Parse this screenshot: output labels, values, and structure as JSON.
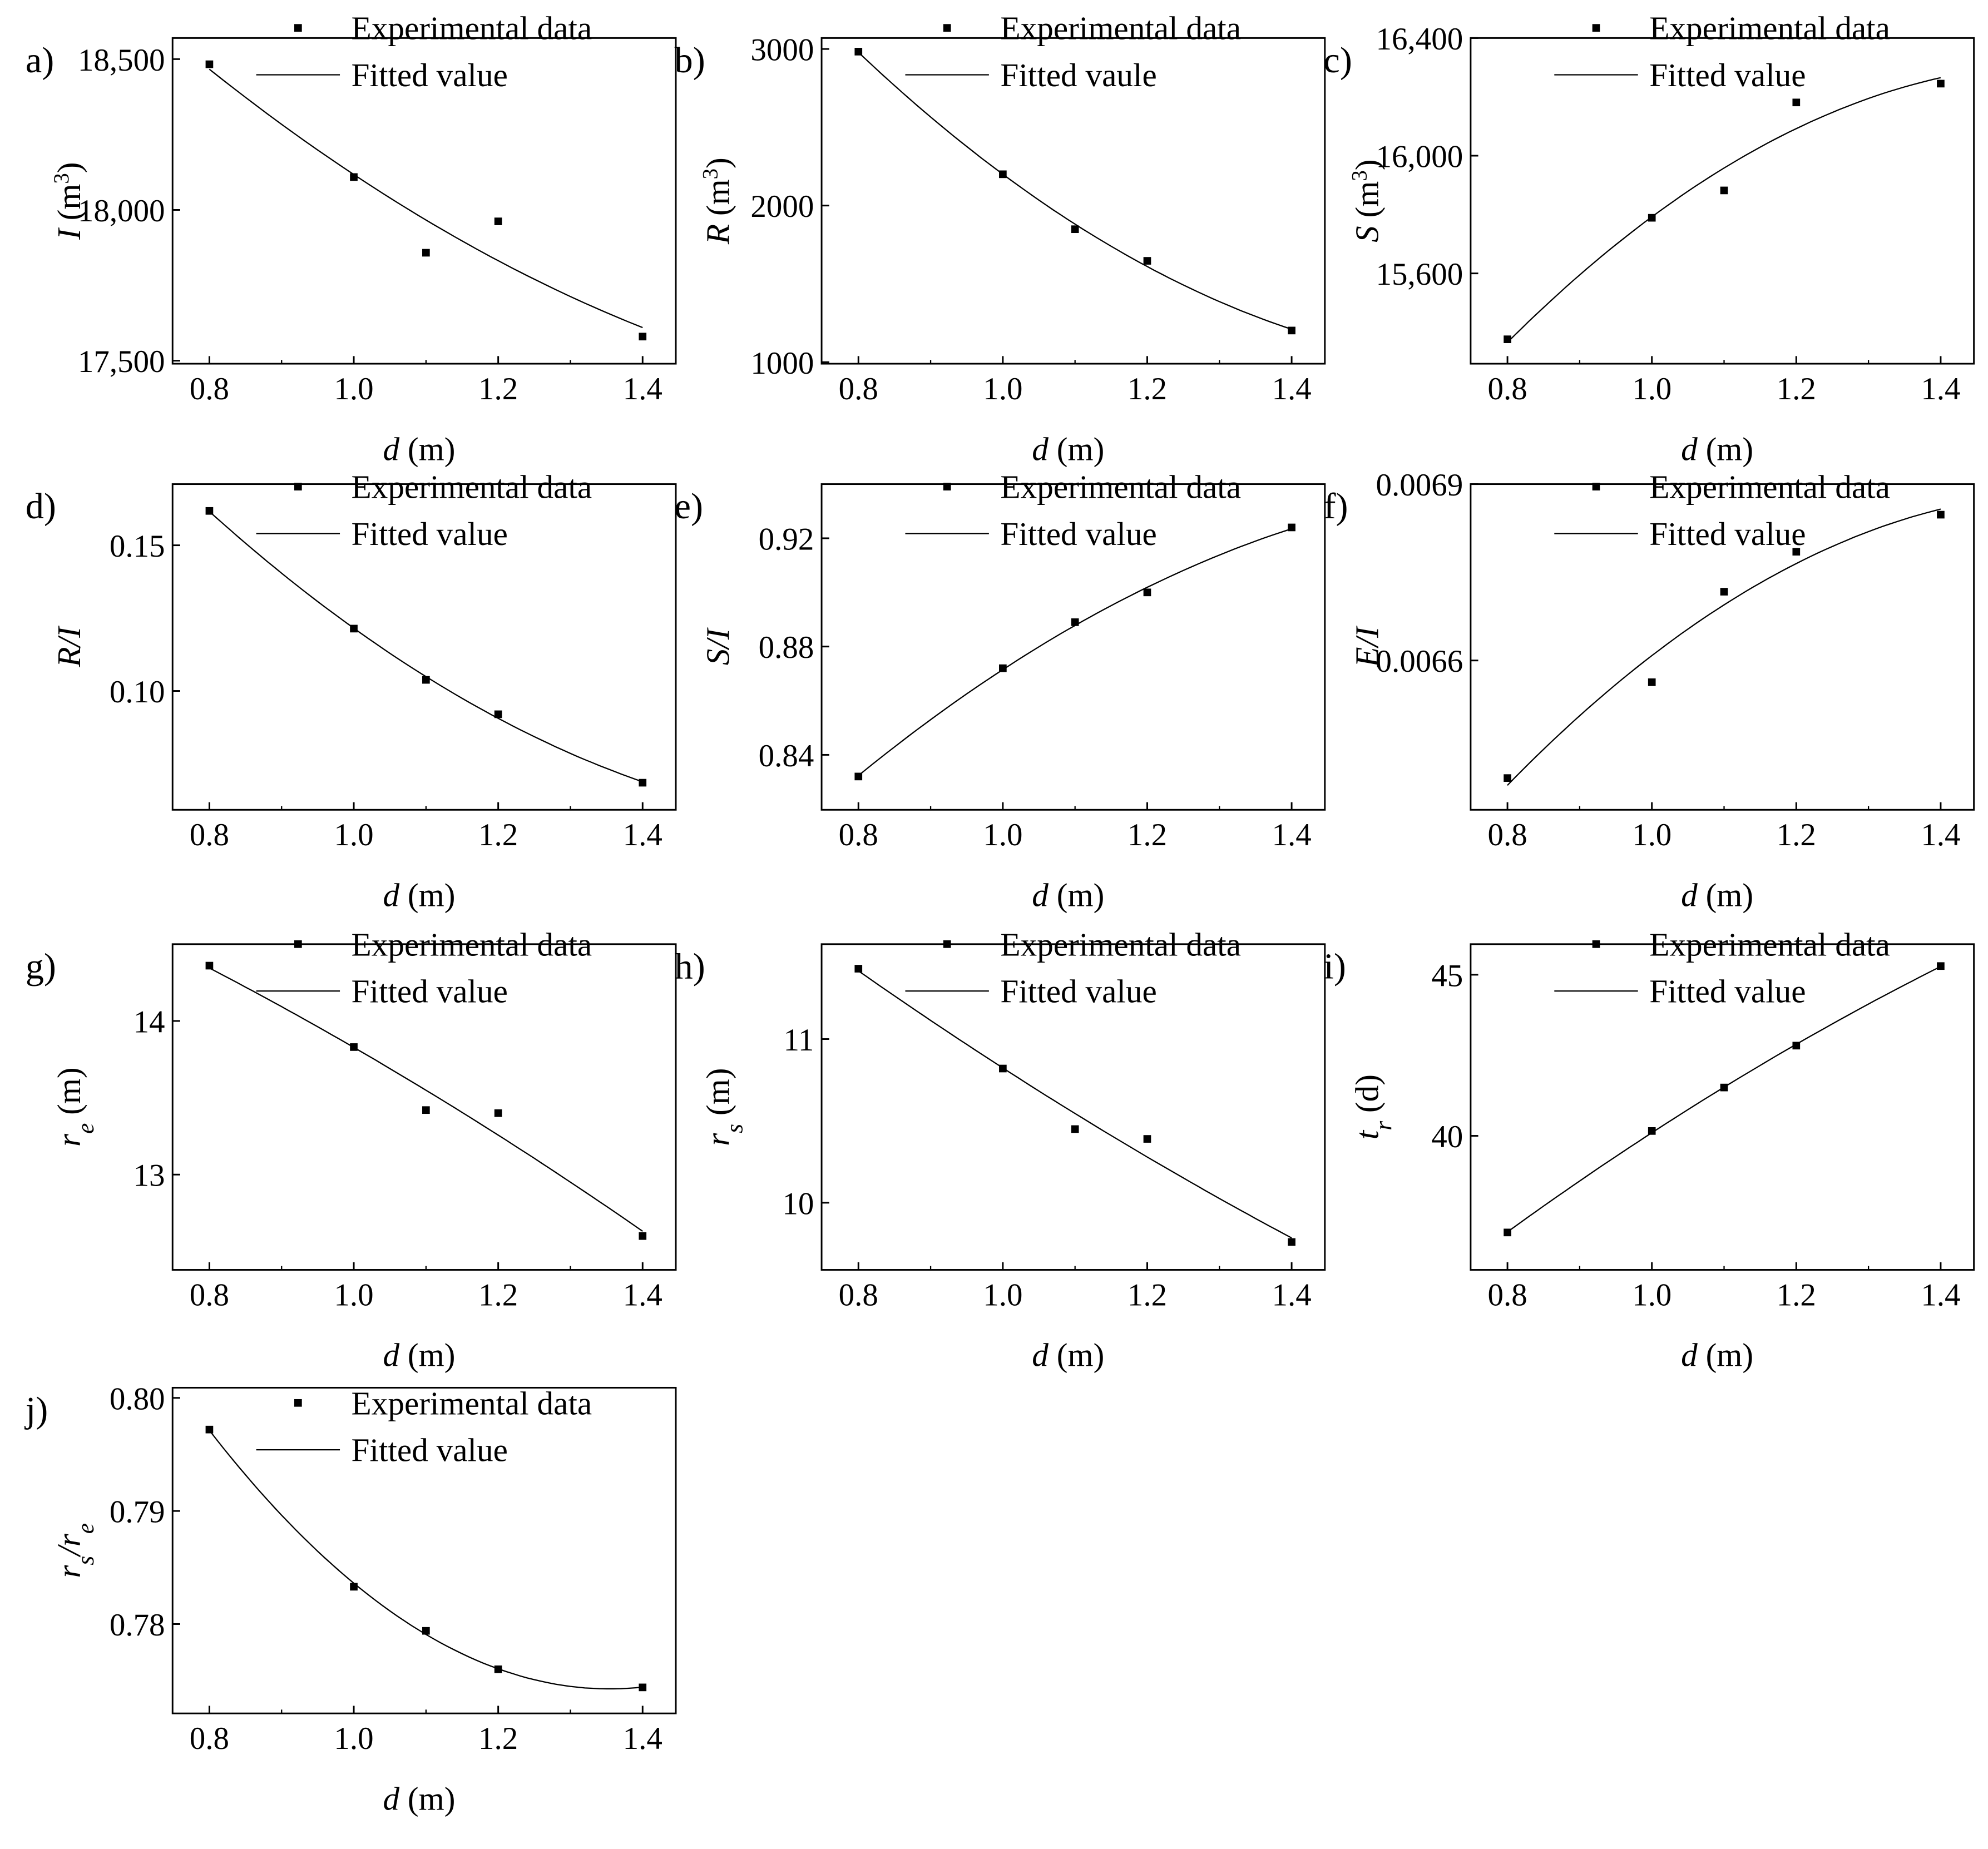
{
  "chart_data": [
    {
      "panel": "a)",
      "type": "scatter",
      "x": [
        0.8,
        1.0,
        1.1,
        1.2,
        1.4
      ],
      "y": [
        18483,
        18109,
        17858,
        17962,
        17580
      ],
      "ylim": [
        17490,
        18570
      ],
      "yticks": [
        17500,
        18000,
        18500
      ],
      "ytick_labels": [
        "17,500",
        "18,000",
        "18,500"
      ],
      "ylabel": [
        {
          "t": "I",
          "i": true
        },
        {
          "t": " (m"
        },
        {
          "t": "3",
          "sup": true
        },
        {
          "t": ")"
        }
      ],
      "legend": [
        "Experimental data",
        "Fitted value"
      ]
    },
    {
      "panel": "b)",
      "type": "scatter",
      "x": [
        0.8,
        1.0,
        1.1,
        1.2,
        1.4
      ],
      "y": [
        2983,
        2200,
        1849,
        1647,
        1202
      ],
      "ylim": [
        990,
        3070
      ],
      "yticks": [
        1000,
        2000,
        3000
      ],
      "ytick_labels": [
        "1000",
        "2000",
        "3000"
      ],
      "ylabel": [
        {
          "t": "R",
          "i": true
        },
        {
          "t": " (m"
        },
        {
          "t": "3",
          "sup": true
        },
        {
          "t": ")"
        }
      ],
      "legend": [
        "Experimental data",
        "Fitted vaule"
      ]
    },
    {
      "panel": "c)",
      "type": "scatter",
      "x": [
        0.8,
        1.0,
        1.1,
        1.2,
        1.4
      ],
      "y": [
        15376,
        15789,
        15882,
        16181,
        16245
      ],
      "ylim": [
        15293,
        16400
      ],
      "yticks": [
        15600,
        16000,
        16400
      ],
      "ytick_labels": [
        "15,600",
        "16,000",
        "16,400"
      ],
      "ylabel": [
        {
          "t": "S",
          "i": true
        },
        {
          "t": " (m"
        },
        {
          "t": "3",
          "sup": true
        },
        {
          "t": ")"
        }
      ],
      "legend": [
        "Experimental data",
        "Fitted value"
      ]
    },
    {
      "panel": "d)",
      "type": "scatter",
      "x": [
        0.8,
        1.0,
        1.1,
        1.2,
        1.4
      ],
      "y": [
        0.1618,
        0.1214,
        0.1038,
        0.092,
        0.0685
      ],
      "ylim": [
        0.0592,
        0.171
      ],
      "yticks": [
        0.1,
        0.15
      ],
      "ytick_labels": [
        "0.10",
        "0.15"
      ],
      "ylabel": [
        {
          "t": "R/I",
          "i": true
        }
      ],
      "legend": [
        "Experimental data",
        "Fitted value"
      ]
    },
    {
      "panel": "e)",
      "type": "scatter",
      "x": [
        0.8,
        1.0,
        1.1,
        1.2,
        1.4
      ],
      "y": [
        0.832,
        0.872,
        0.889,
        0.9,
        0.924
      ],
      "ylim": [
        0.8197,
        0.94
      ],
      "yticks": [
        0.84,
        0.88,
        0.92
      ],
      "ytick_labels": [
        "0.84",
        "0.88",
        "0.92"
      ],
      "ylabel": [
        {
          "t": "S/I",
          "i": true
        }
      ],
      "legend": [
        "Experimental data",
        "Fitted value"
      ]
    },
    {
      "panel": "f)",
      "type": "scatter",
      "x": [
        0.8,
        1.0,
        1.1,
        1.2,
        1.4
      ],
      "y": [
        0.0064,
        0.006563,
        0.006717,
        0.006785,
        0.006848
      ],
      "ylim": [
        0.006346,
        0.0069
      ],
      "yticks": [
        0.0066,
        0.0069
      ],
      "ytick_labels": [
        "0.0066",
        "0.0069"
      ],
      "ylabel": [
        {
          "t": "E/I",
          "i": true
        }
      ],
      "legend": [
        "Experimental data",
        "Fitted value"
      ]
    },
    {
      "panel": "g)",
      "type": "scatter",
      "x": [
        0.8,
        1.0,
        1.1,
        1.2,
        1.4
      ],
      "y": [
        14.36,
        13.83,
        13.42,
        13.4,
        12.6
      ],
      "ylim": [
        12.38,
        14.5
      ],
      "yticks": [
        13,
        14
      ],
      "ytick_labels": [
        "13",
        "14"
      ],
      "ylabel": [
        {
          "t": "r",
          "i": true
        },
        {
          "t": "e",
          "i": true,
          "sub": true
        },
        {
          "t": " (m)"
        }
      ],
      "legend": [
        "Experimental data",
        "Fitted value"
      ]
    },
    {
      "panel": "h)",
      "type": "scatter",
      "x": [
        0.8,
        1.0,
        1.1,
        1.2,
        1.4
      ],
      "y": [
        11.43,
        10.82,
        10.45,
        10.39,
        9.76
      ],
      "ylim": [
        9.59,
        11.58
      ],
      "yticks": [
        10,
        11
      ],
      "ytick_labels": [
        "10",
        "11"
      ],
      "ylabel": [
        {
          "t": "r",
          "i": true
        },
        {
          "t": "s",
          "i": true,
          "sub": true
        },
        {
          "t": " (m)"
        }
      ],
      "legend": [
        "Experimental data",
        "Fitted value"
      ]
    },
    {
      "panel": "i)",
      "type": "scatter",
      "x": [
        0.8,
        1.0,
        1.1,
        1.2,
        1.4
      ],
      "y": [
        37.0,
        40.15,
        41.5,
        42.8,
        45.27
      ],
      "ylim": [
        35.84,
        45.95
      ],
      "yticks": [
        40,
        45
      ],
      "ytick_labels": [
        "40",
        "45"
      ],
      "ylabel": [
        {
          "t": "t",
          "i": true
        },
        {
          "t": "r",
          "i": true,
          "sub": true
        },
        {
          "t": " (d)"
        }
      ],
      "legend": [
        "Experimental data",
        "Fitted value"
      ]
    },
    {
      "panel": "j)",
      "type": "scatter",
      "x": [
        0.8,
        1.0,
        1.1,
        1.2,
        1.4
      ],
      "y": [
        0.7972,
        0.7833,
        0.7794,
        0.776,
        0.7744
      ],
      "ylim": [
        0.7721,
        0.8009
      ],
      "yticks": [
        0.78,
        0.79,
        0.8
      ],
      "ytick_labels": [
        "0.78",
        "0.79",
        "0.80"
      ],
      "ylabel": [
        {
          "t": "r",
          "i": true
        },
        {
          "t": "s",
          "i": true,
          "sub": true
        },
        {
          "t": "/r",
          "i": true
        },
        {
          "t": "e",
          "i": true,
          "sub": true
        }
      ],
      "legend": [
        "Experimental data",
        "Fitted value"
      ]
    }
  ],
  "xaxis": {
    "label_var": "d",
    "label_unit": " (m)",
    "xlim": [
      0.749,
      1.446
    ],
    "ticks": [
      0.8,
      1.0,
      1.2,
      1.4
    ],
    "tick_labels": [
      "0.8",
      "1.0",
      "1.2",
      "1.4"
    ]
  }
}
